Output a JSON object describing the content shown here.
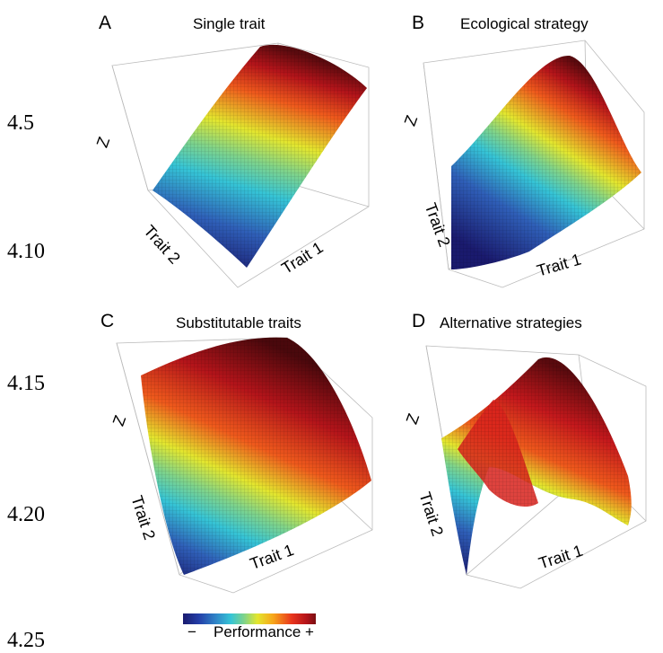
{
  "side_numbers": [
    "4.5",
    "4.10",
    "4.15",
    "4.20",
    "4.25"
  ],
  "panels": [
    {
      "letter": "A",
      "title": "Single trait",
      "z_label": "Z",
      "x_label": "Trait 1",
      "y_label": "Trait 2"
    },
    {
      "letter": "B",
      "title": "Ecological strategy",
      "z_label": "Z",
      "x_label": "Trait 1",
      "y_label": "Trait 2"
    },
    {
      "letter": "C",
      "title": "Substitutable traits",
      "z_label": "Z",
      "x_label": "Trait 1",
      "y_label": "Trait 2"
    },
    {
      "letter": "D",
      "title": "Alternative strategies",
      "z_label": "Z",
      "x_label": "Trait 1",
      "y_label": "Trait 2"
    }
  ],
  "legend": {
    "minus": "−",
    "label": "Performance",
    "plus": "+"
  },
  "colors": {
    "low": "#1a1a6e",
    "mid": "#e3e62e",
    "high": "#7a0f12"
  }
}
